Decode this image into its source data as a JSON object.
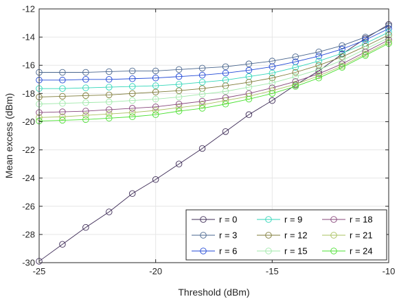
{
  "chart_data": {
    "type": "line",
    "xlabel": "Threshold (dBm)",
    "ylabel": "Mean excess (dBm)",
    "xlim": [
      -25,
      -10
    ],
    "ylim": [
      -30,
      -12
    ],
    "x_ticks": [
      "-25",
      "-20",
      "-15",
      "-10"
    ],
    "y_ticks": [
      "-30",
      "-28",
      "-26",
      "-24",
      "-22",
      "-20",
      "-18",
      "-16",
      "-14",
      "-12"
    ],
    "grid": true,
    "marker": "circle",
    "legend_position": "bottom-right",
    "x": [
      -25,
      -24,
      -23,
      -22,
      -21,
      -20,
      -19,
      -18,
      -17,
      -16,
      -15,
      -14,
      -13,
      -12,
      -11,
      -10
    ],
    "series": [
      {
        "name": "r = 0",
        "color": "#3d2b56",
        "values": [
          -29.9,
          -28.7,
          -27.5,
          -26.4,
          -25.1,
          -24.1,
          -23.0,
          -21.9,
          -20.7,
          -19.5,
          -18.5,
          -17.4,
          -16.4,
          -15.2,
          -14.1,
          -13.1
        ]
      },
      {
        "name": "r = 3",
        "color": "#46638c",
        "values": [
          -16.5,
          -16.5,
          -16.5,
          -16.45,
          -16.4,
          -16.4,
          -16.3,
          -16.2,
          -16.1,
          -15.9,
          -15.7,
          -15.4,
          -15.05,
          -14.6,
          -14.0,
          -13.2
        ]
      },
      {
        "name": "r = 6",
        "color": "#1f47d6",
        "values": [
          -17.05,
          -17.05,
          -17.0,
          -17.0,
          -16.95,
          -16.9,
          -16.8,
          -16.7,
          -16.55,
          -16.35,
          -16.1,
          -15.75,
          -15.35,
          -14.85,
          -14.2,
          -13.4
        ]
      },
      {
        "name": "r = 9",
        "color": "#2fd6b8",
        "values": [
          -17.65,
          -17.65,
          -17.6,
          -17.55,
          -17.5,
          -17.45,
          -17.35,
          -17.2,
          -17.05,
          -16.8,
          -16.55,
          -16.15,
          -15.7,
          -15.15,
          -14.45,
          -13.65
        ]
      },
      {
        "name": "r = 12",
        "color": "#7d7a36",
        "values": [
          -18.25,
          -18.2,
          -18.15,
          -18.1,
          -18.0,
          -17.9,
          -17.8,
          -17.65,
          -17.45,
          -17.2,
          -16.9,
          -16.5,
          -16.0,
          -15.4,
          -14.65,
          -13.85
        ]
      },
      {
        "name": "r = 15",
        "color": "#9fe8a9",
        "values": [
          -18.75,
          -18.7,
          -18.65,
          -18.6,
          -18.5,
          -18.4,
          -18.25,
          -18.05,
          -17.85,
          -17.55,
          -17.25,
          -16.8,
          -16.3,
          -15.65,
          -14.85,
          -14.05
        ]
      },
      {
        "name": "r = 18",
        "color": "#86457a",
        "values": [
          -19.35,
          -19.3,
          -19.25,
          -19.15,
          -19.05,
          -18.95,
          -18.75,
          -18.55,
          -18.3,
          -18.0,
          -17.6,
          -17.15,
          -16.6,
          -15.9,
          -15.05,
          -14.2
        ]
      },
      {
        "name": "r = 21",
        "color": "#a8c05c",
        "values": [
          -19.7,
          -19.65,
          -19.55,
          -19.45,
          -19.35,
          -19.2,
          -19.0,
          -18.8,
          -18.5,
          -18.2,
          -17.8,
          -17.35,
          -16.75,
          -16.05,
          -15.2,
          -14.35
        ]
      },
      {
        "name": "r = 24",
        "color": "#48e02f",
        "values": [
          -19.95,
          -19.9,
          -19.85,
          -19.75,
          -19.65,
          -19.5,
          -19.25,
          -19.05,
          -18.75,
          -18.4,
          -18.0,
          -17.5,
          -16.9,
          -16.15,
          -15.3,
          -14.45
        ]
      }
    ]
  }
}
